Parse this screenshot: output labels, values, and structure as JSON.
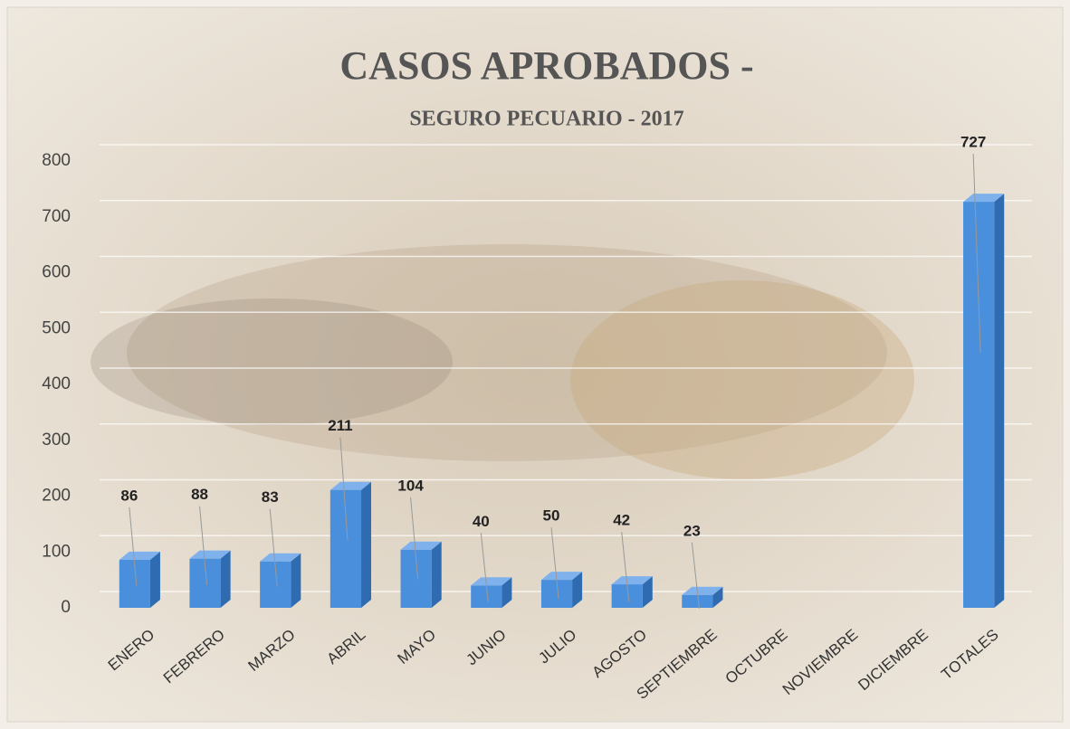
{
  "chart_data": {
    "type": "bar",
    "title": "CASOS APROBADOS -",
    "subtitle": "SEGURO PECUARIO  - 2017",
    "categories": [
      "ENERO",
      "FEBRERO",
      "MARZO",
      "ABRIL",
      "MAYO",
      "JUNIO",
      "JULIO",
      "AGOSTO",
      "SEPTIEMBRE",
      "OCTUBRE",
      "NOVIEMBRE",
      "DICIEMBRE",
      "TOTALES"
    ],
    "values": [
      86,
      88,
      83,
      211,
      104,
      40,
      50,
      42,
      23,
      null,
      null,
      null,
      727
    ],
    "color": "#4a8fdc",
    "ylim": [
      0,
      800
    ],
    "yticks": [
      0,
      100,
      200,
      300,
      400,
      500,
      600,
      700,
      800
    ],
    "grid": true
  }
}
